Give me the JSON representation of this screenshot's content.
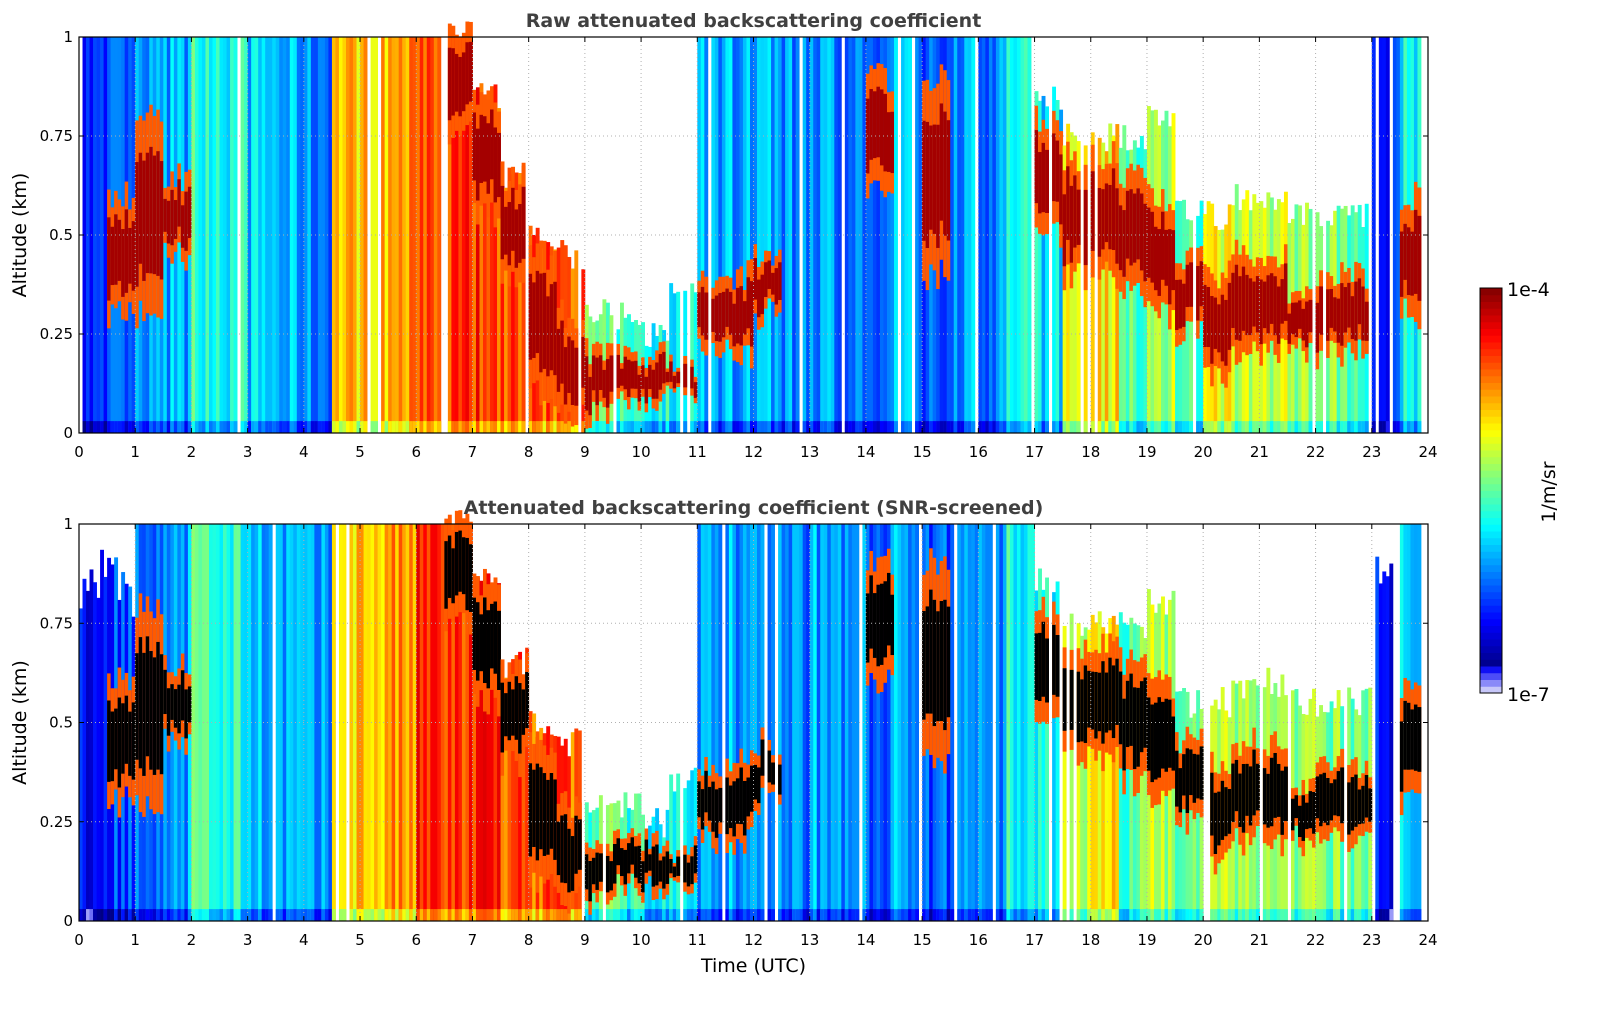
{
  "chart_data": {
    "type": "heatmap",
    "xlabel": "Time (UTC)",
    "xlim": [
      0,
      24
    ],
    "xticks": [
      "0",
      "1",
      "2",
      "3",
      "4",
      "5",
      "6",
      "7",
      "8",
      "9",
      "10",
      "11",
      "12",
      "13",
      "14",
      "15",
      "16",
      "17",
      "18",
      "19",
      "20",
      "21",
      "22",
      "23",
      "24"
    ],
    "colorbar": {
      "label": "1/m/sr",
      "min_label": "1e-7",
      "max_label": "1e-4",
      "scale": "log",
      "range_log10": [
        -7,
        -4
      ]
    },
    "grid": true,
    "bin_width_hours": 0.5,
    "bins_note_fields": [
      "column_log10_value",
      "data_top_km",
      "cloud_base_km",
      "cloud_top_km"
    ],
    "bins": [
      [
        -6.4,
        1,
        null,
        null
      ],
      [
        -6.3,
        1,
        0.3,
        0.6
      ],
      [
        -6.1,
        1,
        0.3,
        0.8
      ],
      [
        -6.0,
        1,
        0.45,
        0.65
      ],
      [
        -5.6,
        1,
        null,
        null
      ],
      [
        -5.7,
        1,
        null,
        null
      ],
      [
        -5.9,
        1,
        null,
        null
      ],
      [
        -6.0,
        1,
        null,
        null
      ],
      [
        -6.1,
        1,
        null,
        null
      ],
      [
        -4.9,
        1,
        null,
        null
      ],
      [
        -4.9,
        1,
        null,
        null
      ],
      [
        -4.8,
        1,
        null,
        null
      ],
      [
        -4.5,
        1,
        null,
        null
      ],
      [
        -4.5,
        1,
        0.75,
        1
      ],
      [
        -4.5,
        0.85,
        0.55,
        0.85
      ],
      [
        -4.6,
        0.65,
        0.4,
        0.65
      ],
      [
        -4.6,
        0.5,
        0.1,
        0.45
      ],
      [
        -4.6,
        0.45,
        0.05,
        0.3
      ],
      [
        -5.5,
        0.3,
        0.05,
        0.2
      ],
      [
        -5.6,
        0.3,
        0.08,
        0.2
      ],
      [
        -5.7,
        0.25,
        0.08,
        0.2
      ],
      [
        -5.8,
        0.35,
        0.08,
        0.18
      ],
      [
        -6.0,
        1,
        0.2,
        0.4
      ],
      [
        -6.0,
        1,
        0.2,
        0.4
      ],
      [
        -6.0,
        1,
        0.3,
        0.45
      ],
      [
        -6.1,
        1,
        null,
        null
      ],
      [
        -6.0,
        1,
        null,
        null
      ],
      [
        -6.1,
        1,
        null,
        null
      ],
      [
        -6.2,
        1,
        0.6,
        0.9
      ],
      [
        -6.0,
        1,
        null,
        null
      ],
      [
        -6.2,
        1,
        0.4,
        0.9
      ],
      [
        -6.0,
        1,
        null,
        null
      ],
      [
        -6.1,
        1,
        null,
        null
      ],
      [
        -5.7,
        1,
        null,
        null
      ],
      [
        -5.8,
        0.85,
        0.5,
        0.8
      ],
      [
        -5.2,
        0.75,
        0.4,
        0.7
      ],
      [
        -5.0,
        0.75,
        0.4,
        0.7
      ],
      [
        -5.5,
        0.75,
        0.35,
        0.65
      ],
      [
        -5.3,
        0.8,
        0.3,
        0.6
      ],
      [
        -5.5,
        0.55,
        0.25,
        0.45
      ],
      [
        -5.1,
        0.55,
        0.15,
        0.4
      ],
      [
        -5.3,
        0.6,
        0.2,
        0.45
      ],
      [
        -5.2,
        0.6,
        0.2,
        0.45
      ],
      [
        -5.3,
        0.55,
        0.2,
        0.35
      ],
      [
        -5.4,
        0.55,
        0.2,
        0.4
      ],
      [
        -5.5,
        0.55,
        0.2,
        0.4
      ],
      [
        -6.4,
        1,
        null,
        null
      ],
      [
        -5.8,
        1,
        0.3,
        0.6
      ]
    ],
    "panels": [
      {
        "title": "Raw attenuated backscattering coefficient",
        "ylabel": "Altitude (km)",
        "ylim": [
          0,
          1
        ],
        "yticks": [
          "0",
          "0.25",
          "0.5",
          "0.75",
          "1"
        ],
        "screened": false
      },
      {
        "title": "Attenuated backscattering coefficient (SNR-screened)",
        "ylabel": "Altitude (km)",
        "ylim": [
          0,
          1
        ],
        "yticks": [
          "0",
          "0.25",
          "0.5",
          "0.75",
          "1"
        ],
        "screened": true,
        "screened_cloud_color": "#000000"
      }
    ]
  }
}
